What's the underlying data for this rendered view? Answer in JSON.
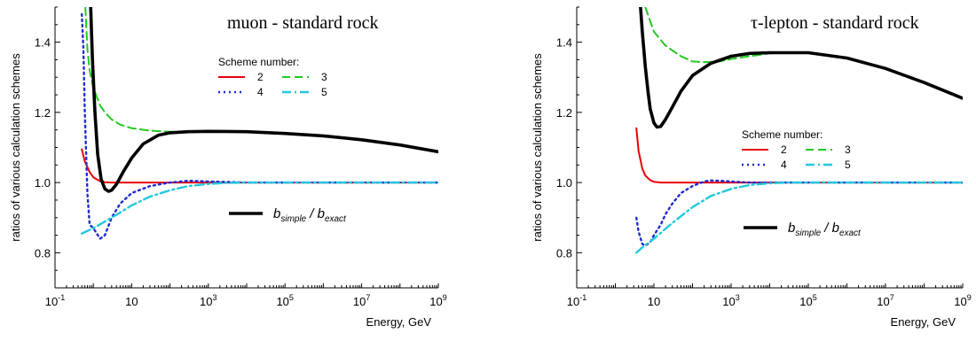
{
  "chart_data": [
    {
      "type": "line",
      "title": "muon - standard rock",
      "xlabel": "Energy, GeV",
      "ylabel": "ratios of various calculation schemes",
      "x_scale": "log",
      "xlim": [
        0.1,
        1000000000
      ],
      "ylim": [
        0.7,
        1.5
      ],
      "x_ticks": [
        {
          "base": "10",
          "exp": "-1"
        },
        {
          "base": "10",
          "exp": ""
        },
        {
          "base": "10",
          "exp": "3"
        },
        {
          "base": "10",
          "exp": "5"
        },
        {
          "base": "10",
          "exp": "7"
        },
        {
          "base": "10",
          "exp": "9"
        }
      ],
      "y_ticks": [
        "0.8",
        "1.0",
        "1.2",
        "1.4"
      ],
      "legend_title": "Scheme number:",
      "legend_labels": [
        "2",
        "3",
        "4",
        "5"
      ],
      "annotation": {
        "main": "b",
        "sub1": "simple",
        "sep": "/ b",
        "sub2": "exact"
      },
      "series": [
        {
          "name": "2",
          "color": "#e8000b",
          "style": "solid",
          "x": [
            0.5,
            0.6,
            0.8,
            1,
            1.5,
            2,
            3,
            10,
            100,
            1000,
            1000000,
            1000000000
          ],
          "y": [
            1.095,
            1.06,
            1.03,
            1.015,
            1.004,
            1.001,
            1.0,
            1.0,
            1.0,
            1.0,
            1.0,
            1.0
          ]
        },
        {
          "name": "3",
          "color": "#22c922",
          "style": "dashed",
          "x": [
            0.62,
            0.7,
            0.8,
            1,
            1.5,
            2,
            3,
            5,
            10,
            30,
            100,
            300
          ],
          "y": [
            1.5,
            1.38,
            1.32,
            1.27,
            1.22,
            1.2,
            1.18,
            1.165,
            1.155,
            1.148,
            1.145,
            1.145
          ]
        },
        {
          "name": "4",
          "color": "#1f2ad1",
          "style": "dotted",
          "x": [
            0.5,
            0.55,
            0.6,
            0.7,
            0.8,
            1,
            1.5,
            2,
            3,
            5,
            10,
            30,
            100,
            300,
            1000,
            10000,
            1000000000
          ],
          "y": [
            1.48,
            1.38,
            1.2,
            0.97,
            0.88,
            0.87,
            0.84,
            0.85,
            0.9,
            0.94,
            0.97,
            0.99,
            1.0,
            1.005,
            1.003,
            1.0,
            1.0
          ]
        },
        {
          "name": "5",
          "color": "#22c8dd",
          "style": "dashdot",
          "x": [
            0.5,
            1,
            3,
            10,
            30,
            100,
            300,
            1000,
            3000,
            10000,
            1000000,
            1000000000
          ],
          "y": [
            0.855,
            0.87,
            0.9,
            0.935,
            0.96,
            0.978,
            0.99,
            0.996,
            0.999,
            1.0,
            1.0,
            1.0
          ]
        },
        {
          "name": "b_simple / b_exact",
          "color": "#000000",
          "style": "solid",
          "x": [
            0.85,
            0.95,
            1.1,
            1.3,
            1.6,
            2,
            2.5,
            3,
            4,
            6,
            10,
            20,
            50,
            100,
            300,
            1000,
            10000,
            100000,
            1000000,
            10000000,
            100000000,
            1000000000
          ],
          "y": [
            1.5,
            1.35,
            1.2,
            1.08,
            1.01,
            0.982,
            0.975,
            0.978,
            0.995,
            1.03,
            1.07,
            1.11,
            1.135,
            1.142,
            1.145,
            1.146,
            1.145,
            1.14,
            1.133,
            1.122,
            1.107,
            1.088
          ]
        }
      ]
    },
    {
      "type": "line",
      "title": "τ-lepton - standard rock",
      "xlabel": "Energy, GeV",
      "ylabel": "ratios of various calculation schemes",
      "x_scale": "log",
      "xlim": [
        0.1,
        1000000000
      ],
      "ylim": [
        0.7,
        1.5
      ],
      "x_ticks": [
        {
          "base": "10",
          "exp": "-1"
        },
        {
          "base": "10",
          "exp": ""
        },
        {
          "base": "10",
          "exp": "3"
        },
        {
          "base": "10",
          "exp": "5"
        },
        {
          "base": "10",
          "exp": "7"
        },
        {
          "base": "10",
          "exp": "9"
        }
      ],
      "y_ticks": [
        "0.8",
        "1.0",
        "1.2",
        "1.4"
      ],
      "legend_title": "Scheme number:",
      "legend_labels": [
        "2",
        "3",
        "4",
        "5"
      ],
      "annotation": {
        "main": "b",
        "sub1": "simple",
        "sep": "/ b",
        "sub2": "exact"
      },
      "series": [
        {
          "name": "2",
          "color": "#e8000b",
          "style": "solid",
          "x": [
            3.5,
            4,
            5,
            6,
            8,
            10,
            15,
            30,
            100,
            1000000000
          ],
          "y": [
            1.155,
            1.09,
            1.04,
            1.02,
            1.007,
            1.002,
            1.0,
            1.0,
            1.0,
            1.0
          ]
        },
        {
          "name": "3",
          "color": "#22c922",
          "style": "dashed",
          "x": [
            6,
            8,
            10,
            20,
            50,
            100,
            200,
            500,
            1000,
            3000,
            10000,
            30000,
            100000
          ],
          "y": [
            1.5,
            1.46,
            1.43,
            1.39,
            1.36,
            1.345,
            1.343,
            1.345,
            1.352,
            1.36,
            1.368,
            1.37,
            1.37
          ]
        },
        {
          "name": "4",
          "color": "#1f2ad1",
          "style": "dotted",
          "x": [
            3.5,
            4,
            5,
            6,
            8,
            10,
            15,
            20,
            30,
            50,
            100,
            200,
            300,
            500,
            1000,
            3000,
            10000,
            1000000000
          ],
          "y": [
            0.9,
            0.86,
            0.825,
            0.82,
            0.83,
            0.85,
            0.88,
            0.91,
            0.94,
            0.97,
            0.99,
            1.003,
            1.006,
            1.005,
            1.003,
            1.0,
            1.0,
            1.0
          ]
        },
        {
          "name": "5",
          "color": "#22c8dd",
          "style": "dashdot",
          "x": [
            3.5,
            5,
            10,
            30,
            100,
            300,
            1000,
            3000,
            10000,
            30000,
            100000,
            1000000000
          ],
          "y": [
            0.8,
            0.815,
            0.84,
            0.885,
            0.93,
            0.962,
            0.982,
            0.993,
            0.998,
            1.0,
            1.0,
            1.0
          ]
        },
        {
          "name": "b_simple / b_exact",
          "color": "#000000",
          "style": "solid",
          "x": [
            4.5,
            5,
            6,
            7,
            8,
            10,
            12,
            15,
            20,
            30,
            50,
            100,
            300,
            1000,
            3000,
            10000,
            30000,
            100000,
            1000000,
            10000000,
            100000000,
            1000000000
          ],
          "y": [
            1.5,
            1.43,
            1.33,
            1.26,
            1.21,
            1.17,
            1.158,
            1.16,
            1.18,
            1.215,
            1.26,
            1.305,
            1.34,
            1.36,
            1.368,
            1.37,
            1.37,
            1.37,
            1.355,
            1.325,
            1.285,
            1.24
          ]
        }
      ]
    }
  ]
}
